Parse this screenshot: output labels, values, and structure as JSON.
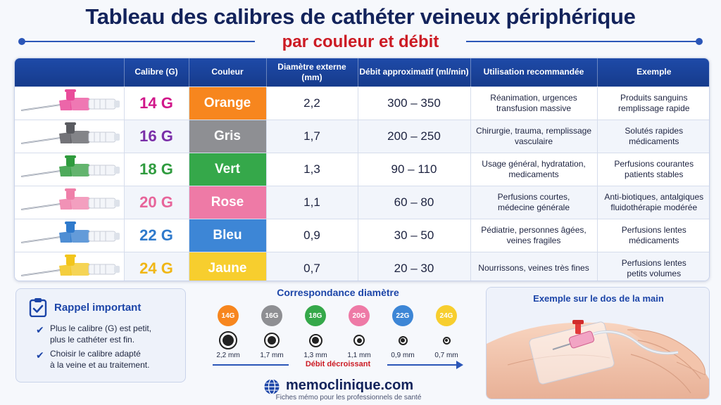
{
  "title": "Tableau des calibres de cathéter veineux périphérique",
  "subtitle": "par couleur et débit",
  "table": {
    "headers": [
      "Calibre (G)",
      "Couleur",
      "Diamètre externe (mm)",
      "Débit approximatif (ml/min)",
      "Utilisation recommandée",
      "Exemple"
    ],
    "rows": [
      {
        "gauge": "14 G",
        "color_name": "Orange",
        "color_hex": "#f7861e",
        "gauge_color": "#d1178a",
        "hub_color": "#e94b9a",
        "diameter": "2,2",
        "flow": "300 – 350",
        "use": [
          "Réanimation, urgences",
          "transfusion massive"
        ],
        "example": [
          "Produits sanguins",
          "remplissage rapide"
        ]
      },
      {
        "gauge": "16 G",
        "color_name": "Gris",
        "color_hex": "#8e8f93",
        "gauge_color": "#7a2ea8",
        "hub_color": "#5a5b60",
        "diameter": "1,7",
        "flow": "200 – 250",
        "use": [
          "Chirurgie, trauma, remplissage",
          "vasculaire"
        ],
        "example": [
          "Solutés rapides",
          "médicaments"
        ]
      },
      {
        "gauge": "18 G",
        "color_name": "Vert",
        "color_hex": "#35a84a",
        "gauge_color": "#2f9b3e",
        "hub_color": "#2f9b3e",
        "diameter": "1,3",
        "flow": "90 – 110",
        "use": [
          "Usage général, hydratation,",
          "medicaments"
        ],
        "example": [
          "Perfusions courantes",
          "patients stables"
        ]
      },
      {
        "gauge": "20 G",
        "color_name": "Rose",
        "color_hex": "#ee7aa6",
        "gauge_color": "#e7649a",
        "hub_color": "#ef7fa9",
        "diameter": "1,1",
        "flow": "60 – 80",
        "use": [
          "Perfusions courtes,",
          "médecine générale"
        ],
        "example": [
          "Anti-biotiques, antalgiques",
          "fluidothérapie modérée"
        ]
      },
      {
        "gauge": "22 G",
        "color_name": "Bleu",
        "color_hex": "#3d86d6",
        "gauge_color": "#2f7acc",
        "hub_color": "#2f7acc",
        "diameter": "0,9",
        "flow": "30 – 50",
        "use": [
          "Pédiatrie, personnes âgées,",
          "veines fragiles"
        ],
        "example": [
          "Perfusions lentes",
          "médicaments"
        ]
      },
      {
        "gauge": "24 G",
        "color_name": "Jaune",
        "color_hex": "#f7ce2e",
        "gauge_color": "#f0b615",
        "hub_color": "#f2c51c",
        "diameter": "0,7",
        "flow": "20 – 30",
        "use": [
          "Nourrissons, veines très fines"
        ],
        "example": [
          "Perfusions lentes",
          "petits volumes"
        ]
      }
    ]
  },
  "rappel": {
    "title": "Rappel important",
    "items": [
      [
        "Plus le calibre (G) est petit,",
        "plus le cathéter est fin."
      ],
      [
        "Choisir le calibre adapté",
        "à la veine et au traitement."
      ]
    ]
  },
  "correspondance": {
    "title": "Correspondance diamètre",
    "badges": [
      {
        "label": "14G",
        "color": "#f7861e",
        "mm": "2,2 mm"
      },
      {
        "label": "16G",
        "color": "#8e8f93",
        "mm": "1,7 mm"
      },
      {
        "label": "18G",
        "color": "#35a84a",
        "mm": "1,3 mm"
      },
      {
        "label": "20G",
        "color": "#ee7aa6",
        "mm": "1,1 mm"
      },
      {
        "label": "22G",
        "color": "#3d86d6",
        "mm": "0,9 mm"
      },
      {
        "label": "24G",
        "color": "#f7ce2e",
        "mm": "0,7 mm"
      }
    ],
    "arrow_label": "Débit décroissant"
  },
  "brand": {
    "name": "memoclinique.com",
    "tagline": "Fiches mémo pour les professionnels de santé",
    "icon": "globe-icon"
  },
  "hand_panel": {
    "title": "Exemple sur le dos de la main"
  }
}
